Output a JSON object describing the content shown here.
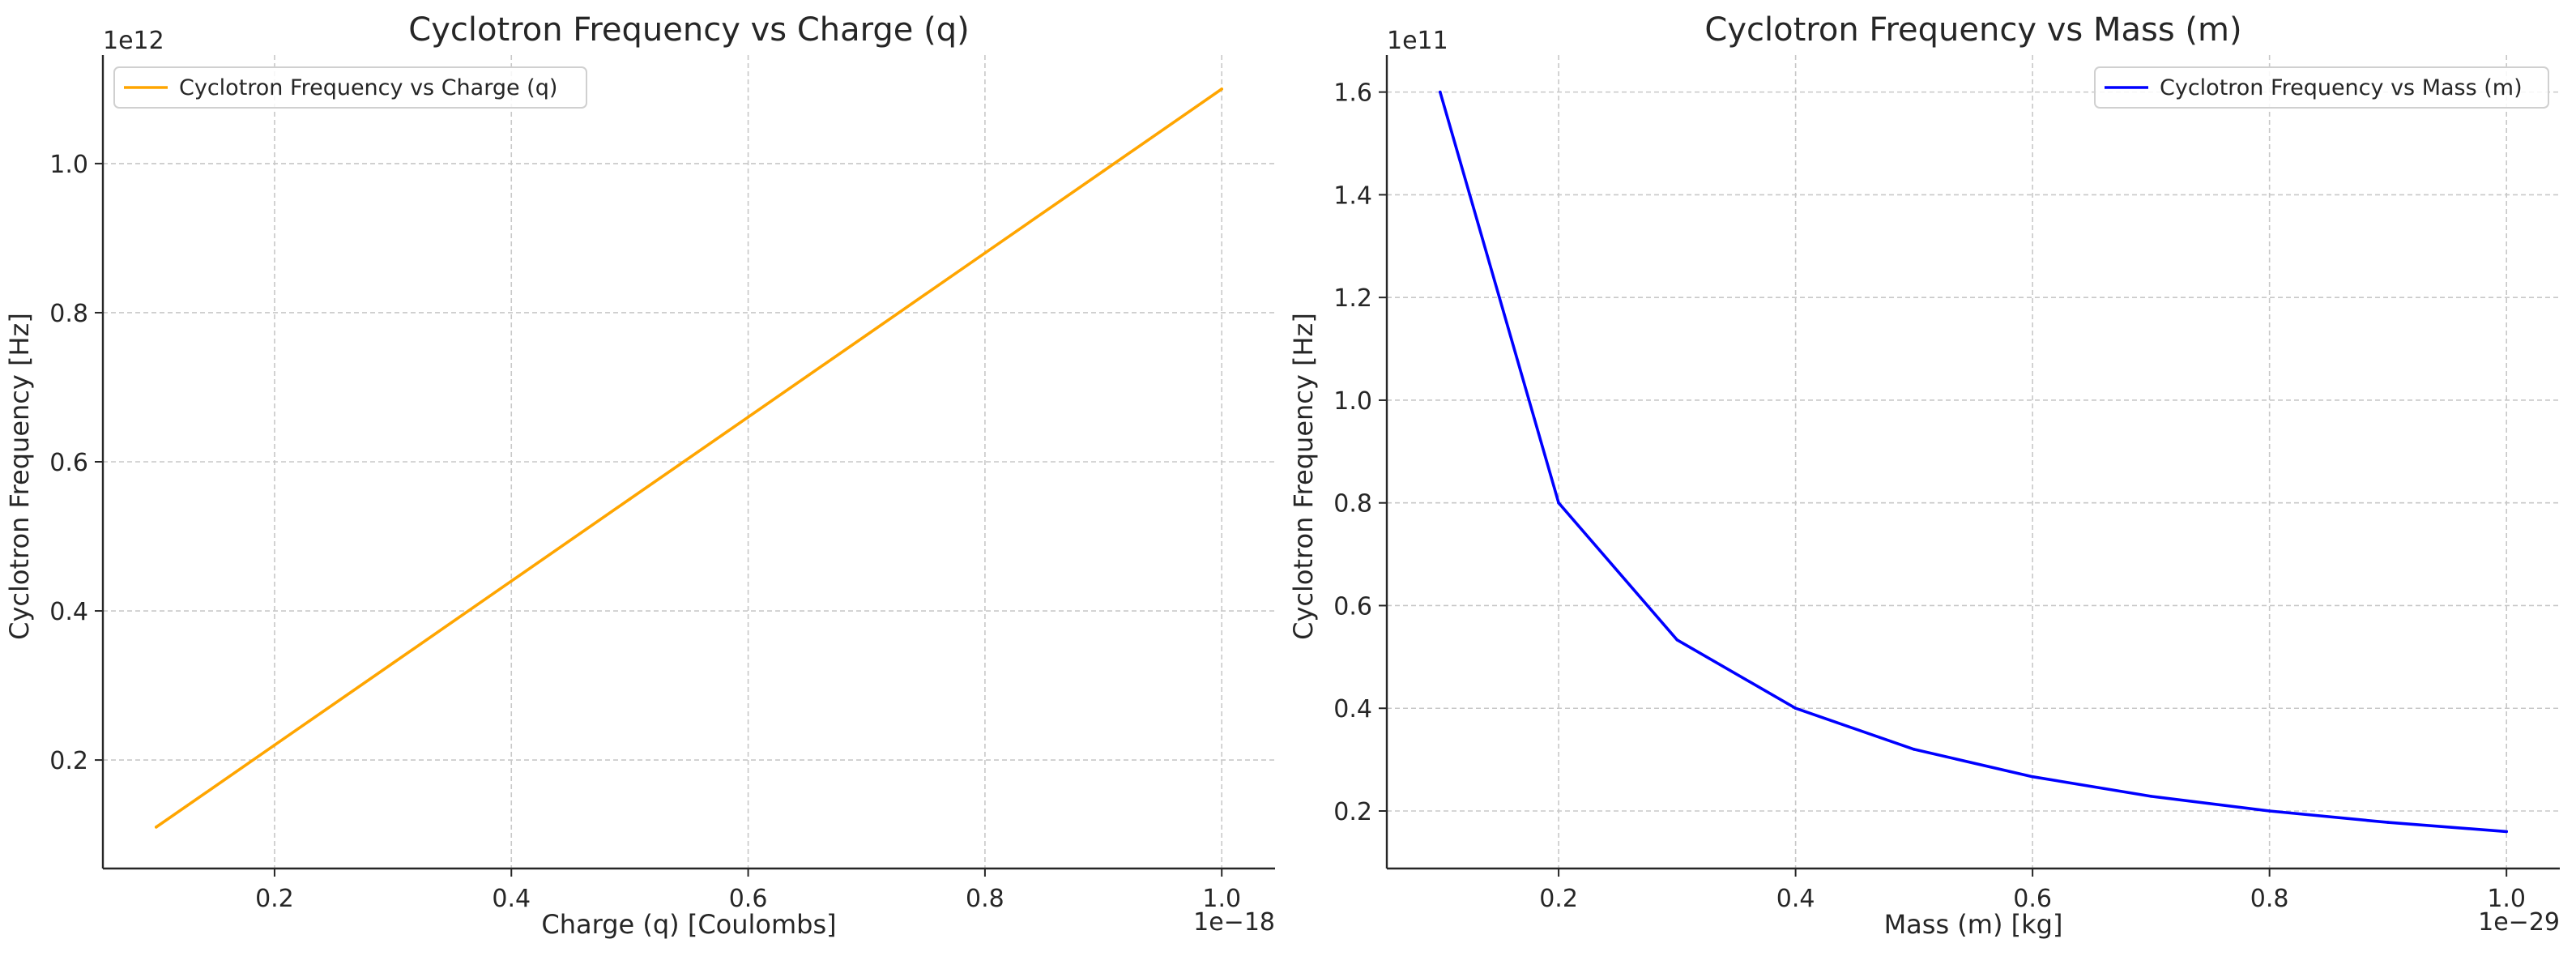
{
  "chart_data": [
    {
      "type": "line",
      "title": "Cyclotron Frequency vs Charge (q)",
      "xlabel": "Charge (q) [Coulombs]",
      "ylabel": "Cyclotron Frequency [Hz]",
      "x_offset_text": "1e−18",
      "y_offset_text": "1e12",
      "xlim": [
        0.055,
        1.045
      ],
      "ylim": [
        0.0545,
        1.1455
      ],
      "xticks": [
        0.2,
        0.4,
        0.6,
        0.8,
        1.0
      ],
      "xtick_labels": [
        "0.2",
        "0.4",
        "0.6",
        "0.8",
        "1.0"
      ],
      "yticks": [
        0.2,
        0.4,
        0.6,
        0.8,
        1.0
      ],
      "ytick_labels": [
        "0.2",
        "0.4",
        "0.6",
        "0.8",
        "1.0"
      ],
      "grid": true,
      "legend_position": "upper-left",
      "series": [
        {
          "name": "Cyclotron Frequency vs Charge (q)",
          "color": "#FFA500",
          "x": [
            0.1,
            0.2,
            0.3,
            0.4,
            0.5,
            0.6,
            0.7,
            0.8,
            0.9,
            1.0
          ],
          "y": [
            0.11,
            0.22,
            0.33,
            0.44,
            0.55,
            0.66,
            0.77,
            0.88,
            0.99,
            1.1
          ]
        }
      ]
    },
    {
      "type": "line",
      "title": "Cyclotron Frequency vs Mass (m)",
      "xlabel": "Mass (m) [kg]",
      "ylabel": "Cyclotron Frequency [Hz]",
      "x_offset_text": "1e−29",
      "y_offset_text": "1e11",
      "xlim": [
        0.055,
        1.045
      ],
      "ylim": [
        0.088,
        1.672
      ],
      "xticks": [
        0.2,
        0.4,
        0.6,
        0.8,
        1.0
      ],
      "xtick_labels": [
        "0.2",
        "0.4",
        "0.6",
        "0.8",
        "1.0"
      ],
      "yticks": [
        0.2,
        0.4,
        0.6,
        0.8,
        1.0,
        1.2,
        1.4,
        1.6
      ],
      "ytick_labels": [
        "0.2",
        "0.4",
        "0.6",
        "0.8",
        "1.0",
        "1.2",
        "1.4",
        "1.6"
      ],
      "grid": true,
      "legend_position": "upper-right",
      "series": [
        {
          "name": "Cyclotron Frequency vs Mass (m)",
          "color": "#0000FF",
          "x": [
            0.1,
            0.2,
            0.3,
            0.4,
            0.5,
            0.6,
            0.7,
            0.8,
            0.9,
            1.0
          ],
          "y": [
            1.6,
            0.8,
            0.5333,
            0.4,
            0.32,
            0.2667,
            0.2286,
            0.2,
            0.1778,
            0.16
          ]
        }
      ]
    }
  ]
}
